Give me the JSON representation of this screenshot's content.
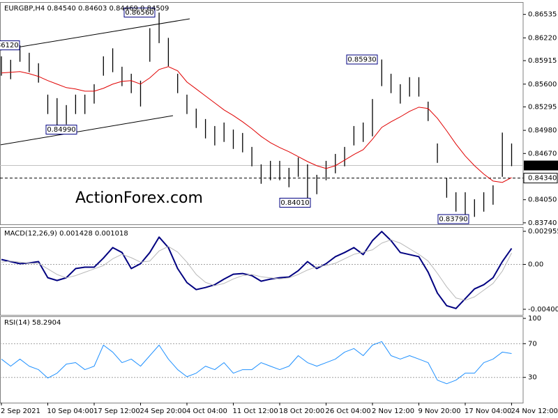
{
  "chart_data": [
    {
      "type": "hilo",
      "title": "EURGBP,H4 0.84540 0.84603 0.84469 0.84509",
      "color": "#000000",
      "high": [
        0.85973,
        0.85926,
        0.8612,
        0.8602,
        0.8588,
        0.85459,
        0.85412,
        0.85319,
        0.85459,
        0.85459,
        0.85599,
        0.85973,
        0.8608,
        0.85833,
        0.85739,
        0.85646,
        0.8635,
        0.8656,
        0.8622,
        0.85739,
        0.85459,
        0.85272,
        0.85132,
        0.85038,
        0.85085,
        0.84991,
        0.84945,
        0.84758,
        0.84524,
        0.84571,
        0.84571,
        0.84477,
        0.84617,
        0.84524,
        0.84384,
        0.84571,
        0.84664,
        0.84758,
        0.85038,
        0.85085,
        0.854,
        0.8593,
        0.85739,
        0.85599,
        0.85693,
        0.85693,
        0.85365,
        0.84804,
        0.84337,
        0.8415,
        0.8415,
        0.84056,
        0.8415,
        0.84243,
        0.8495,
        0.84804
      ],
      "low": [
        0.85713,
        0.85666,
        0.859,
        0.8576,
        0.8562,
        0.85199,
        0.8499,
        0.85059,
        0.85199,
        0.85199,
        0.85339,
        0.85713,
        0.8576,
        0.85573,
        0.85479,
        0.853,
        0.859,
        0.8615,
        0.8584,
        0.85479,
        0.85199,
        0.85012,
        0.84872,
        0.84778,
        0.84825,
        0.84731,
        0.84685,
        0.84498,
        0.84264,
        0.84311,
        0.84311,
        0.84217,
        0.84357,
        0.8401,
        0.84124,
        0.84311,
        0.84404,
        0.84498,
        0.84778,
        0.84825,
        0.849,
        0.85573,
        0.85479,
        0.85339,
        0.85433,
        0.85433,
        0.85105,
        0.84544,
        0.84077,
        0.8389,
        0.8379,
        0.8382,
        0.8389,
        0.83983,
        0.84357,
        0.845
      ],
      "ma": {
        "color": "#e00000",
        "values": [
          0.8575,
          0.85759,
          0.85768,
          0.8574,
          0.85703,
          0.85647,
          0.856,
          0.85553,
          0.85535,
          0.85506,
          0.85506,
          0.85544,
          0.856,
          0.85637,
          0.85647,
          0.856,
          0.85684,
          0.85796,
          0.85834,
          0.85778,
          0.85628,
          0.85535,
          0.85441,
          0.85348,
          0.85254,
          0.85179,
          0.85095,
          0.85002,
          0.84899,
          0.84815,
          0.84749,
          0.84693,
          0.84628,
          0.84562,
          0.84506,
          0.84469,
          0.84506,
          0.84581,
          0.84656,
          0.84721,
          0.84861,
          0.8502,
          0.85095,
          0.85161,
          0.85235,
          0.85291,
          0.85273,
          0.85142,
          0.84974,
          0.84796,
          0.84637,
          0.84506,
          0.84394,
          0.843,
          0.84282,
          0.84347
        ]
      },
      "annotations": [
        {
          "value": 0.8656,
          "label": "0.86560"
        },
        {
          "value": 0.8612,
          "label": "0.86120"
        },
        {
          "value": 0.8499,
          "label": "0.84990"
        },
        {
          "value": 0.8593,
          "label": "0.85930"
        },
        {
          "value": 0.8401,
          "label": "0.84010"
        },
        {
          "value": 0.8379,
          "label": "0.83790"
        }
      ],
      "last_price": {
        "value": 0.84509,
        "label": "0.84509"
      },
      "marker_line": {
        "value": 0.8434,
        "label": "0.84340"
      },
      "watermark": "ActionForex.com",
      "ylim": [
        0.8372,
        0.867
      ],
      "yticks": [
        {
          "value": 0.86535,
          "label": "0.86535"
        },
        {
          "value": 0.8622,
          "label": "0.86220"
        },
        {
          "value": 0.85915,
          "label": "0.85915"
        },
        {
          "value": 0.856,
          "label": "0.85600"
        },
        {
          "value": 0.85295,
          "label": "0.85295"
        },
        {
          "value": 0.8498,
          "label": "0.84980"
        },
        {
          "value": 0.8467,
          "label": "0.84670"
        },
        {
          "value": 0.8405,
          "label": "0.84050"
        },
        {
          "value": 0.8374,
          "label": "0.83740"
        }
      ]
    },
    {
      "type": "line",
      "title": "MACD(12,26,9) 0.001428 0.001018",
      "series": [
        {
          "color": "#000080",
          "width": 2,
          "values": [
            0.000438,
            0.00025,
            6.3e-05,
            0.000125,
            0.00025,
            -0.001188,
            -0.001438,
            -0.001188,
            -0.000375,
            -0.00025,
            -0.00025,
            0.000563,
            0.0015,
            0.001063,
            -0.000375,
            6.3e-05,
            0.001063,
            0.002438,
            0.0015,
            -0.000375,
            -0.001625,
            -0.00225,
            -0.002063,
            -0.001813,
            -0.001313,
            -0.000875,
            -0.000813,
            -0.001,
            -0.0015,
            -0.001313,
            -0.001188,
            -0.001125,
            -0.000563,
            0.00025,
            -0.000375,
            6.3e-05,
            0.000688,
            0.001063,
            0.0015,
            0.000875,
            0.002125,
            0.002938,
            0.002125,
            0.001063,
            0.000875,
            0.000688,
            -0.000688,
            -0.002563,
            -0.003688,
            -0.003938,
            -0.003063,
            -0.002188,
            -0.001813,
            -0.001188,
            0.00025,
            0.001428
          ]
        },
        {
          "color": "#b8b8b8",
          "width": 1,
          "values": [
            0.0002,
            0.0003,
            0.0002,
            0.0001,
            0.0001,
            -0.0004,
            -0.0009,
            -0.0012,
            -0.001,
            -0.0007,
            -0.0004,
            -0.0001,
            0.0005,
            0.0009,
            0.0006,
            0.0002,
            0.0003,
            0.0012,
            0.0016,
            0.0011,
            0.0002,
            -0.0009,
            -0.0016,
            -0.0019,
            -0.0017,
            -0.0013,
            -0.001,
            -0.0009,
            -0.0011,
            -0.0012,
            -0.0013,
            -0.0012,
            -0.0009,
            -0.0005,
            -0.0002,
            -0.0001,
            0.0001,
            0.0005,
            0.0009,
            0.0011,
            0.0013,
            0.0019,
            0.0022,
            0.0019,
            0.0014,
            0.0009,
            0.0003,
            -0.0008,
            -0.002,
            -0.003,
            -0.0032,
            -0.0029,
            -0.0023,
            -0.0017,
            -0.0006,
            0.001018
          ]
        }
      ],
      "levels": [
        0
      ],
      "ylim": [
        -0.00451,
        0.00333
      ],
      "yticks": [
        0.002955,
        {
          "value": 0,
          "label": "0.00"
        },
        -0.004009
      ]
    },
    {
      "type": "line",
      "title": "RSI(14) 58.2904",
      "series": [
        {
          "color": "#1e90ff",
          "width": 1,
          "values": [
            51.7,
            43.3,
            51.7,
            43.3,
            39.2,
            29.2,
            35,
            45.8,
            47.5,
            39.2,
            43.3,
            68.3,
            60,
            47.5,
            51.7,
            43.3,
            55.8,
            68.3,
            51.7,
            39.2,
            30.8,
            35,
            43.3,
            39.2,
            47.5,
            35,
            39.2,
            39.2,
            47.5,
            43.3,
            39.2,
            43.3,
            55.8,
            47.5,
            43.3,
            47.5,
            51.7,
            60,
            64.2,
            55.8,
            68.3,
            72.5,
            55.8,
            51.7,
            55.8,
            51.7,
            47.5,
            26.7,
            22.5,
            26.7,
            35,
            35,
            47.5,
            51.7,
            60,
            58.2904
          ]
        }
      ],
      "levels": [
        70,
        30
      ],
      "ylim": [
        0,
        102.5
      ],
      "yticks": [
        100,
        70,
        30
      ],
      "categories": [
        "2 Sep 2021",
        null,
        null,
        null,
        null,
        "10 Sep 04:00",
        null,
        null,
        null,
        null,
        "17 Sep 12:00",
        null,
        null,
        null,
        null,
        "24 Sep 20:00",
        null,
        null,
        null,
        null,
        "4 Oct 04:00",
        null,
        null,
        null,
        null,
        "11 Oct 12:00",
        null,
        null,
        null,
        null,
        "18 Oct 20:00",
        null,
        null,
        null,
        null,
        "26 Oct 04:00",
        null,
        null,
        null,
        null,
        "2 Nov 12:00",
        null,
        null,
        null,
        null,
        "9 Nov 20:00",
        null,
        null,
        null,
        null,
        "17 Nov 04:00",
        null,
        null,
        null,
        null,
        "24 Nov 12:00"
      ]
    }
  ]
}
